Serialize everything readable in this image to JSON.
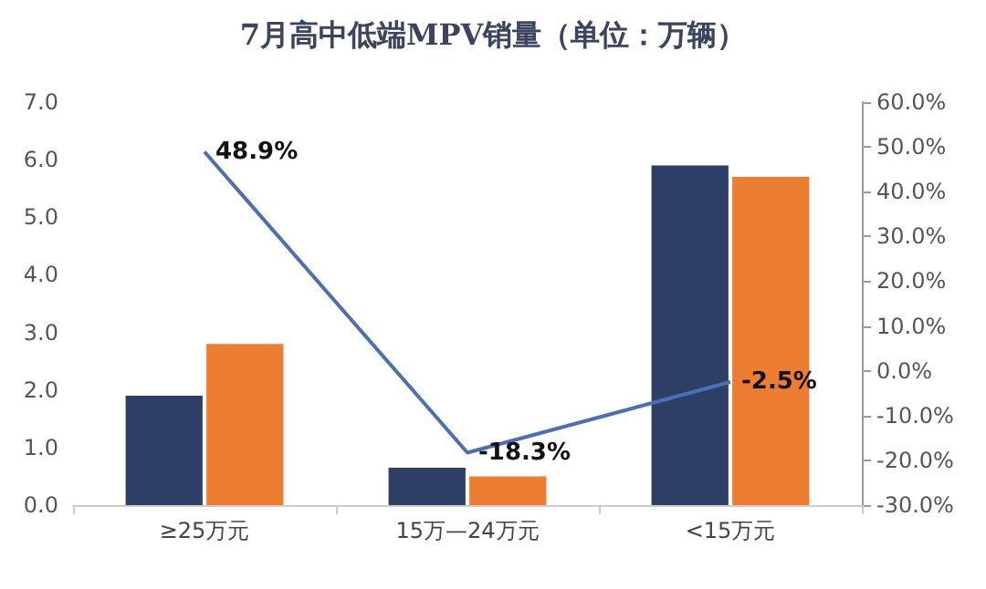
{
  "chart_data": {
    "type": "bar",
    "title": "7月高中低端MPV销量（单位：万辆）",
    "categories": [
      "≥25万元",
      "15万—24万元",
      "<15万元"
    ],
    "series": [
      {
        "color": "#2e3f66",
        "values": [
          1.9,
          0.65,
          5.9
        ]
      },
      {
        "color": "#ed7d31",
        "values": [
          2.8,
          0.5,
          5.7
        ]
      },
      {
        "type": "line",
        "axis": "y2",
        "color": "#4a6fb5",
        "values": [
          48.9,
          -18.3,
          -2.5
        ],
        "value_labels": [
          "48.9%",
          "-18.3%",
          "-2.5%"
        ],
        "marker": "none"
      }
    ],
    "ylim": [
      0,
      7
    ],
    "yticks": [
      {
        "value": 0,
        "label": "0.0"
      },
      {
        "value": 1,
        "label": "1.0"
      },
      {
        "value": 2,
        "label": "2.0"
      },
      {
        "value": 3,
        "label": "3.0"
      },
      {
        "value": 4,
        "label": "4.0"
      },
      {
        "value": 5,
        "label": "5.0"
      },
      {
        "value": 6,
        "label": "6.0"
      },
      {
        "value": 7,
        "label": "7.0"
      }
    ],
    "y2lim": [
      -30,
      60
    ],
    "y2ticks": [
      {
        "value": -30,
        "label": "-30.0%"
      },
      {
        "value": -20,
        "label": "-20.0%"
      },
      {
        "value": -10,
        "label": "-10.0%"
      },
      {
        "value": 0,
        "label": "0.0%"
      },
      {
        "value": 10,
        "label": "10.0%"
      },
      {
        "value": 20,
        "label": "20.0%"
      },
      {
        "value": 30,
        "label": "30.0%"
      },
      {
        "value": 40,
        "label": "40.0%"
      },
      {
        "value": 50,
        "label": "50.0%"
      },
      {
        "value": 60,
        "label": "60.0%"
      }
    ],
    "grid": false
  }
}
